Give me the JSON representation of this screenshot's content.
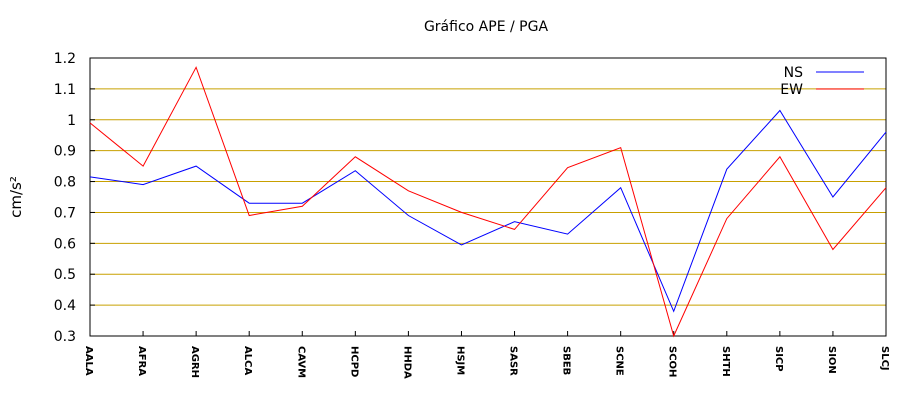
{
  "chart_data": {
    "type": "line",
    "title": "Gráfico  APE / PGA",
    "ylabel": "cm/s²",
    "xlabel": "",
    "ylim": [
      0.3,
      1.2
    ],
    "yticks": [
      "0.3",
      "0.4",
      "0.5",
      "0.6",
      "0.7",
      "0.8",
      "0.9",
      "1",
      "1.1",
      "1.2"
    ],
    "grid": true,
    "legend_position": "top-right",
    "categories": [
      "AALA",
      "AFRA",
      "AGRH",
      "ALCA",
      "CAVM",
      "HCPD",
      "HHDA",
      "HSJM",
      "SASR",
      "SBEB",
      "SCNE",
      "SCOH",
      "SHTH",
      "SICP",
      "SION",
      "SLCJ"
    ],
    "series": [
      {
        "name": "NS",
        "color": "#0000ff",
        "values": [
          0.815,
          0.79,
          0.85,
          0.73,
          0.73,
          0.835,
          0.69,
          0.595,
          0.67,
          0.63,
          0.78,
          0.38,
          0.84,
          1.03,
          0.75,
          0.96
        ]
      },
      {
        "name": "EW",
        "color": "#ff0000",
        "values": [
          0.99,
          0.85,
          1.17,
          0.69,
          0.72,
          0.88,
          0.77,
          0.7,
          0.645,
          0.845,
          0.91,
          0.3,
          0.68,
          0.88,
          0.58,
          0.78
        ]
      }
    ],
    "grid_color": "#c8a000"
  }
}
